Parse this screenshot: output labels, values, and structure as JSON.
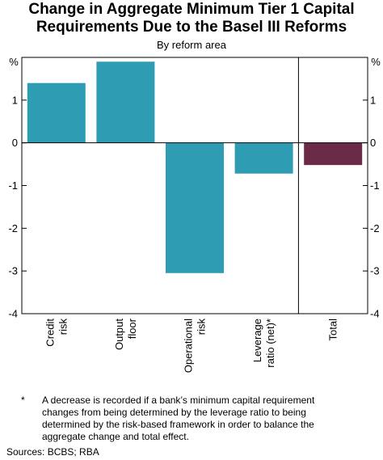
{
  "title_line1": "Change in Aggregate Minimum Tier 1 Capital",
  "title_line2": "Requirements Due to the Basel III Reforms",
  "subtitle": "By reform area",
  "footnote_marker": "*",
  "footnote_text": "A decrease is recorded if a bank’s minimum capital requirement changes from being determined by the leverage ratio to being determined by the risk-based framework in order to balance the aggregate change and total effect.",
  "sources": "Sources: BCBS; RBA",
  "colors": {
    "bar": "#2e9db4",
    "total_bar": "#6b2a47",
    "axis": "#000000"
  },
  "chart_data": {
    "type": "bar",
    "title": "Change in Aggregate Minimum Tier 1 Capital Requirements Due to the Basel III Reforms",
    "subtitle": "By reform area",
    "unit_label": "%",
    "ylim": [
      -4,
      2
    ],
    "yticks": [
      "1",
      "0",
      "-1",
      "-2",
      "-3",
      "-4"
    ],
    "grid": false,
    "categories": [
      [
        "Credit",
        "risk"
      ],
      [
        "Output",
        "floor"
      ],
      [
        "Operational",
        "risk"
      ],
      [
        "Leverage",
        "ratio (net)*"
      ],
      [
        "Total"
      ]
    ],
    "values": [
      1.4,
      1.9,
      -3.05,
      -0.72,
      -0.52
    ]
  }
}
